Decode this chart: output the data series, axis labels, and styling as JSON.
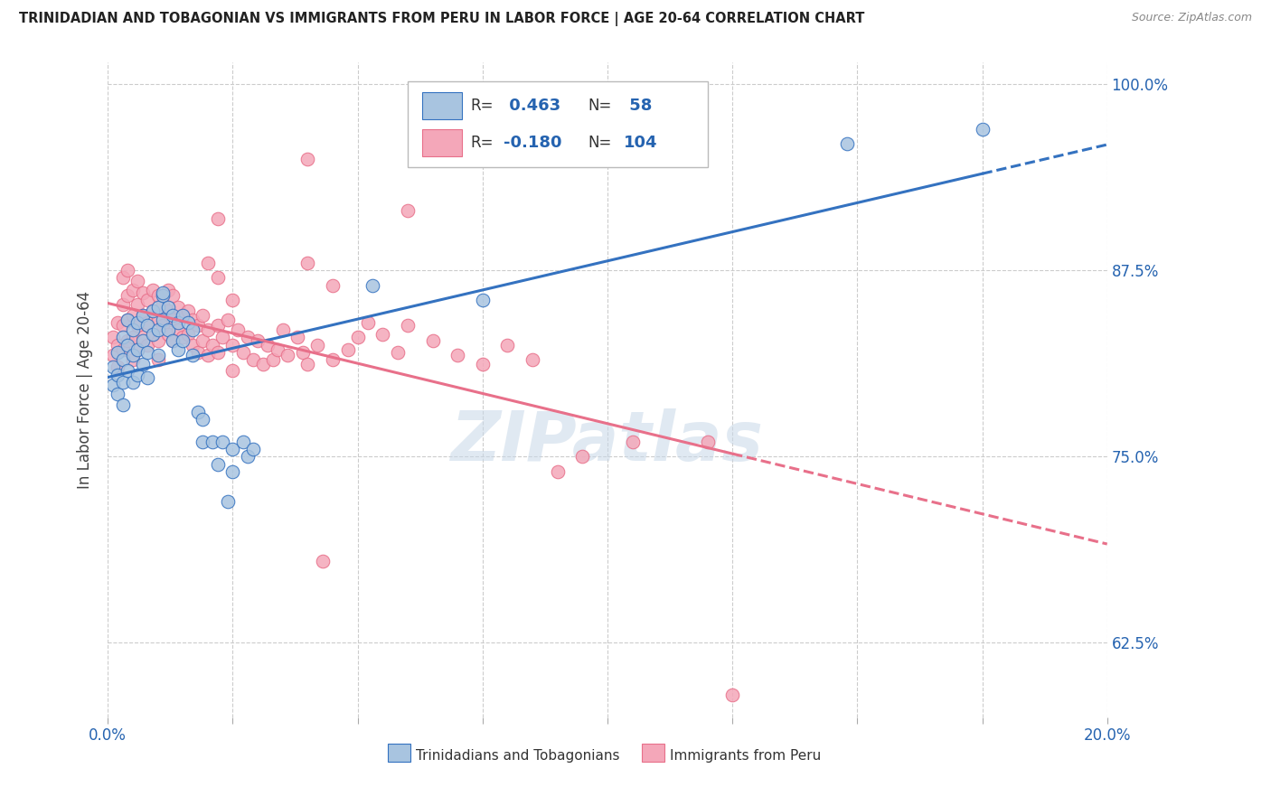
{
  "title": "TRINIDADIAN AND TOBAGONIAN VS IMMIGRANTS FROM PERU IN LABOR FORCE | AGE 20-64 CORRELATION CHART",
  "source": "Source: ZipAtlas.com",
  "ylabel": "In Labor Force | Age 20-64",
  "xlim": [
    0.0,
    0.2
  ],
  "ylim": [
    0.575,
    1.015
  ],
  "yticks": [
    0.625,
    0.75,
    0.875,
    1.0
  ],
  "ytick_labels": [
    "62.5%",
    "75.0%",
    "87.5%",
    "100.0%"
  ],
  "xticks": [
    0.0,
    0.025,
    0.05,
    0.075,
    0.1,
    0.125,
    0.15,
    0.175,
    0.2
  ],
  "xtick_labels_show": [
    "0.0%",
    "",
    "",
    "",
    "",
    "",
    "",
    "",
    "20.0%"
  ],
  "blue_R": 0.463,
  "blue_N": 58,
  "pink_R": -0.18,
  "pink_N": 104,
  "blue_color": "#a8c4e0",
  "pink_color": "#f4a7b9",
  "blue_line_color": "#3472c0",
  "pink_line_color": "#e8708a",
  "legend_label_blue": "Trinidadians and Tobagonians",
  "legend_label_pink": "Immigrants from Peru",
  "watermark": "ZIPatlas",
  "blue_scatter": [
    [
      0.001,
      0.798
    ],
    [
      0.001,
      0.81
    ],
    [
      0.002,
      0.82
    ],
    [
      0.002,
      0.805
    ],
    [
      0.002,
      0.792
    ],
    [
      0.003,
      0.83
    ],
    [
      0.003,
      0.815
    ],
    [
      0.003,
      0.8
    ],
    [
      0.003,
      0.785
    ],
    [
      0.004,
      0.825
    ],
    [
      0.004,
      0.808
    ],
    [
      0.004,
      0.842
    ],
    [
      0.005,
      0.835
    ],
    [
      0.005,
      0.818
    ],
    [
      0.005,
      0.8
    ],
    [
      0.006,
      0.84
    ],
    [
      0.006,
      0.822
    ],
    [
      0.006,
      0.805
    ],
    [
      0.007,
      0.845
    ],
    [
      0.007,
      0.828
    ],
    [
      0.007,
      0.812
    ],
    [
      0.008,
      0.838
    ],
    [
      0.008,
      0.82
    ],
    [
      0.008,
      0.803
    ],
    [
      0.009,
      0.848
    ],
    [
      0.009,
      0.832
    ],
    [
      0.01,
      0.85
    ],
    [
      0.01,
      0.835
    ],
    [
      0.01,
      0.818
    ],
    [
      0.011,
      0.858
    ],
    [
      0.011,
      0.842
    ],
    [
      0.011,
      0.86
    ],
    [
      0.012,
      0.85
    ],
    [
      0.012,
      0.835
    ],
    [
      0.013,
      0.845
    ],
    [
      0.013,
      0.828
    ],
    [
      0.014,
      0.84
    ],
    [
      0.014,
      0.822
    ],
    [
      0.015,
      0.845
    ],
    [
      0.015,
      0.828
    ],
    [
      0.016,
      0.84
    ],
    [
      0.017,
      0.835
    ],
    [
      0.017,
      0.818
    ],
    [
      0.018,
      0.78
    ],
    [
      0.019,
      0.76
    ],
    [
      0.019,
      0.775
    ],
    [
      0.021,
      0.76
    ],
    [
      0.022,
      0.745
    ],
    [
      0.023,
      0.76
    ],
    [
      0.024,
      0.72
    ],
    [
      0.025,
      0.74
    ],
    [
      0.025,
      0.755
    ],
    [
      0.027,
      0.76
    ],
    [
      0.028,
      0.75
    ],
    [
      0.029,
      0.755
    ],
    [
      0.053,
      0.865
    ],
    [
      0.075,
      0.855
    ],
    [
      0.148,
      0.96
    ],
    [
      0.175,
      0.97
    ]
  ],
  "pink_scatter": [
    [
      0.001,
      0.83
    ],
    [
      0.001,
      0.818
    ],
    [
      0.002,
      0.84
    ],
    [
      0.002,
      0.825
    ],
    [
      0.002,
      0.81
    ],
    [
      0.003,
      0.87
    ],
    [
      0.003,
      0.852
    ],
    [
      0.003,
      0.838
    ],
    [
      0.003,
      0.822
    ],
    [
      0.004,
      0.875
    ],
    [
      0.004,
      0.858
    ],
    [
      0.004,
      0.842
    ],
    [
      0.004,
      0.828
    ],
    [
      0.005,
      0.862
    ],
    [
      0.005,
      0.845
    ],
    [
      0.005,
      0.83
    ],
    [
      0.005,
      0.815
    ],
    [
      0.006,
      0.868
    ],
    [
      0.006,
      0.852
    ],
    [
      0.006,
      0.838
    ],
    [
      0.006,
      0.822
    ],
    [
      0.007,
      0.86
    ],
    [
      0.007,
      0.845
    ],
    [
      0.007,
      0.83
    ],
    [
      0.008,
      0.855
    ],
    [
      0.008,
      0.84
    ],
    [
      0.008,
      0.825
    ],
    [
      0.009,
      0.862
    ],
    [
      0.009,
      0.848
    ],
    [
      0.009,
      0.832
    ],
    [
      0.01,
      0.858
    ],
    [
      0.01,
      0.842
    ],
    [
      0.01,
      0.828
    ],
    [
      0.01,
      0.815
    ],
    [
      0.011,
      0.852
    ],
    [
      0.011,
      0.838
    ],
    [
      0.012,
      0.862
    ],
    [
      0.012,
      0.848
    ],
    [
      0.012,
      0.832
    ],
    [
      0.013,
      0.858
    ],
    [
      0.013,
      0.842
    ],
    [
      0.013,
      0.828
    ],
    [
      0.014,
      0.85
    ],
    [
      0.014,
      0.835
    ],
    [
      0.015,
      0.845
    ],
    [
      0.015,
      0.83
    ],
    [
      0.016,
      0.848
    ],
    [
      0.016,
      0.832
    ],
    [
      0.017,
      0.842
    ],
    [
      0.017,
      0.825
    ],
    [
      0.018,
      0.838
    ],
    [
      0.018,
      0.82
    ],
    [
      0.019,
      0.845
    ],
    [
      0.019,
      0.828
    ],
    [
      0.02,
      0.835
    ],
    [
      0.02,
      0.818
    ],
    [
      0.021,
      0.825
    ],
    [
      0.022,
      0.838
    ],
    [
      0.022,
      0.82
    ],
    [
      0.023,
      0.83
    ],
    [
      0.024,
      0.842
    ],
    [
      0.025,
      0.825
    ],
    [
      0.025,
      0.808
    ],
    [
      0.026,
      0.835
    ],
    [
      0.027,
      0.82
    ],
    [
      0.028,
      0.83
    ],
    [
      0.029,
      0.815
    ],
    [
      0.03,
      0.828
    ],
    [
      0.031,
      0.812
    ],
    [
      0.032,
      0.825
    ],
    [
      0.033,
      0.815
    ],
    [
      0.034,
      0.822
    ],
    [
      0.035,
      0.835
    ],
    [
      0.036,
      0.818
    ],
    [
      0.038,
      0.83
    ],
    [
      0.039,
      0.82
    ],
    [
      0.04,
      0.812
    ],
    [
      0.042,
      0.825
    ],
    [
      0.045,
      0.815
    ],
    [
      0.048,
      0.822
    ],
    [
      0.05,
      0.83
    ],
    [
      0.052,
      0.84
    ],
    [
      0.055,
      0.832
    ],
    [
      0.058,
      0.82
    ],
    [
      0.06,
      0.838
    ],
    [
      0.065,
      0.828
    ],
    [
      0.07,
      0.818
    ],
    [
      0.075,
      0.812
    ],
    [
      0.08,
      0.825
    ],
    [
      0.085,
      0.815
    ],
    [
      0.04,
      0.95
    ],
    [
      0.06,
      0.915
    ],
    [
      0.022,
      0.91
    ],
    [
      0.04,
      0.88
    ],
    [
      0.045,
      0.865
    ],
    [
      0.02,
      0.88
    ],
    [
      0.022,
      0.87
    ],
    [
      0.025,
      0.855
    ],
    [
      0.095,
      0.75
    ],
    [
      0.12,
      0.76
    ],
    [
      0.09,
      0.74
    ],
    [
      0.105,
      0.76
    ],
    [
      0.043,
      0.68
    ],
    [
      0.125,
      0.59
    ]
  ]
}
